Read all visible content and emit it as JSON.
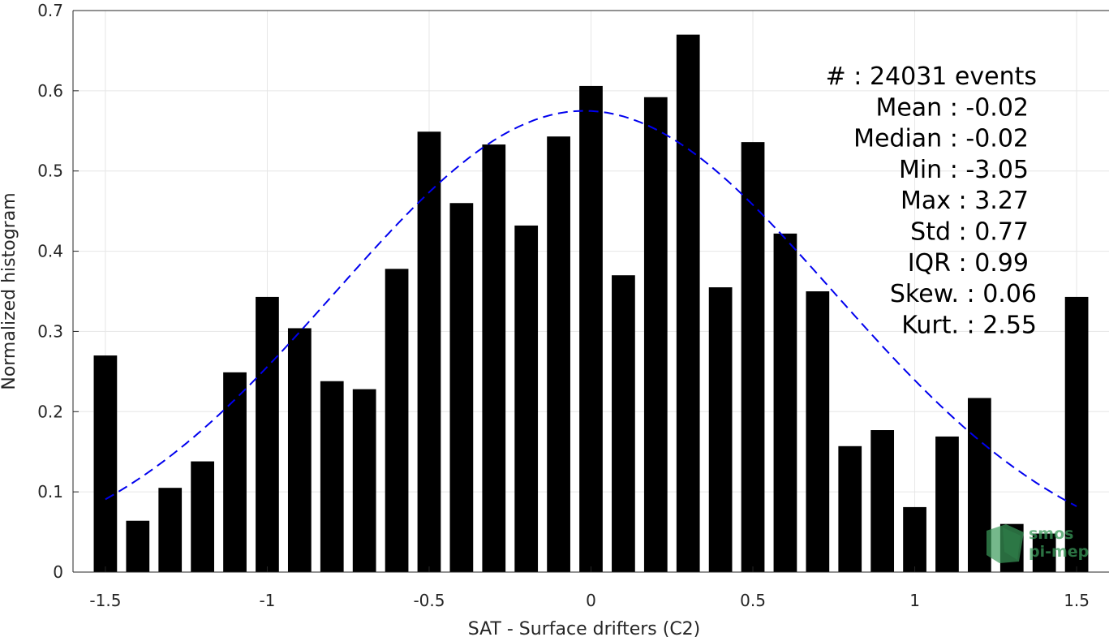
{
  "chart_data": {
    "type": "bar",
    "xlabel": "SAT - Surface drifters (C2)",
    "ylabel": "Normalized histogram",
    "xlim": [
      -1.6,
      1.6
    ],
    "ylim": [
      0,
      0.7
    ],
    "xticks": [
      -1.5,
      -1,
      -0.5,
      0,
      0.5,
      1,
      1.5
    ],
    "xtick_labels": [
      "-1.5",
      "-1",
      "-0.5",
      "0",
      "0.5",
      "1",
      "1.5"
    ],
    "yticks": [
      0,
      0.1,
      0.2,
      0.3,
      0.4,
      0.5,
      0.6,
      0.7
    ],
    "ytick_labels": [
      "0",
      "0.1",
      "0.2",
      "0.3",
      "0.4",
      "0.5",
      "0.6",
      "0.7"
    ],
    "grid": true,
    "bar_color": "#000000",
    "bars": {
      "x": [
        -1.5,
        -1.4,
        -1.3,
        -1.2,
        -1.1,
        -1.0,
        -0.9,
        -0.8,
        -0.7,
        -0.6,
        -0.5,
        -0.4,
        -0.3,
        -0.2,
        -0.1,
        0.0,
        0.1,
        0.2,
        0.3,
        0.4,
        0.5,
        0.6,
        0.7,
        0.8,
        0.9,
        1.0,
        1.1,
        1.2,
        1.3,
        1.4,
        1.5
      ],
      "values": [
        0.27,
        0.064,
        0.105,
        0.138,
        0.249,
        0.343,
        0.304,
        0.238,
        0.228,
        0.378,
        0.549,
        0.46,
        0.533,
        0.432,
        0.543,
        0.606,
        0.37,
        0.592,
        0.67,
        0.355,
        0.536,
        0.422,
        0.35,
        0.157,
        0.177,
        0.081,
        0.169,
        0.217,
        0.06,
        0.048,
        0.343
      ],
      "width": 0.072
    },
    "fit_curve": {
      "style": "dashed",
      "color": "#0000ee",
      "mean": -0.02,
      "std": 0.77,
      "peak": 0.575,
      "x_range": [
        -1.5,
        1.5
      ]
    },
    "stats": [
      "#  : 24031 events",
      "Mean : -0.02",
      "Median : -0.02",
      "Min : -3.05",
      "Max : 3.27",
      "Std : 0.77",
      "IQR : 0.99",
      "Skew. : 0.06",
      "Kurt. : 2.55"
    ],
    "watermark": [
      "smos",
      "pi-mep"
    ]
  }
}
